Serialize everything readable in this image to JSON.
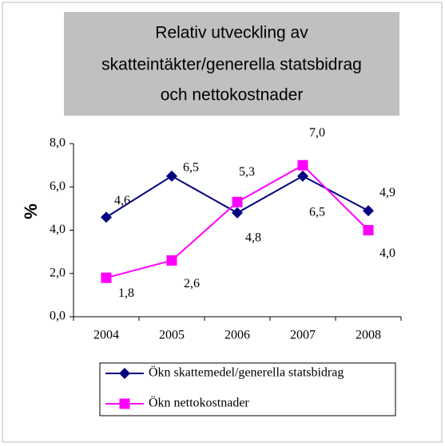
{
  "chart_data": {
    "type": "line",
    "title": [
      "Relativ utveckling av",
      "skatteintäkter/generella statsbidrag",
      "och nettokostnader"
    ],
    "ylabel": "%",
    "categories": [
      "2004",
      "2005",
      "2006",
      "2007",
      "2008"
    ],
    "series": [
      {
        "name": "Ökn skattemedel/generella statsbidrag",
        "color": "#000080",
        "marker": "diamond",
        "values": [
          4.6,
          6.5,
          4.8,
          6.5,
          4.9
        ],
        "value_labels": [
          "4,6",
          "6,5",
          "4,8",
          "6,5",
          "4,9"
        ]
      },
      {
        "name": "Ökn nettokostnader",
        "color": "#ff00ff",
        "marker": "square",
        "values": [
          1.8,
          2.6,
          5.3,
          7.0,
          4.0
        ],
        "value_labels": [
          "1,8",
          "2,6",
          "5,3",
          "7,0",
          "4,0"
        ]
      }
    ],
    "ylim": [
      0,
      8
    ],
    "yticks": [
      {
        "value": 0,
        "label": "0,0"
      },
      {
        "value": 2,
        "label": "2,0"
      },
      {
        "value": 4,
        "label": "4,0"
      },
      {
        "value": 6,
        "label": "6,0"
      },
      {
        "value": 8,
        "label": "8,0"
      }
    ],
    "grid": false,
    "legend": "bottom"
  }
}
